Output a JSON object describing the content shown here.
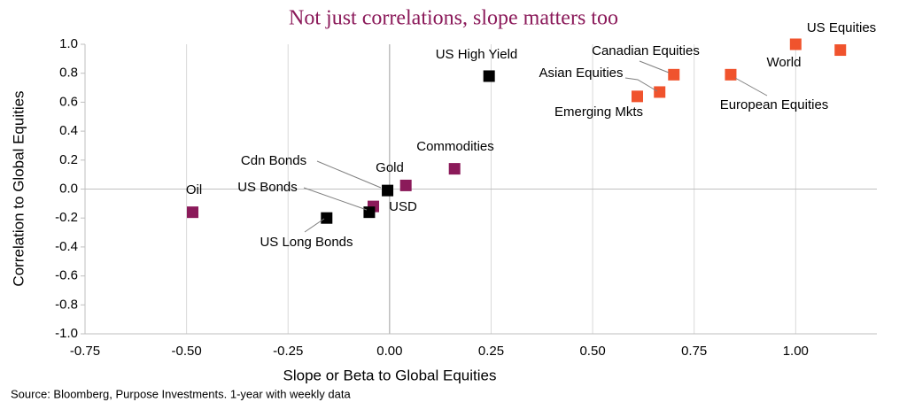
{
  "chart_data": {
    "type": "scatter",
    "title": "Not just correlations, slope matters too",
    "x_label": "Slope or Beta to Global Equities",
    "y_label": "Correlation to Global Equities",
    "source": "Source: Bloomberg, Purpose Investments. 1-year with weekly data",
    "xlim": [
      -0.75,
      1.2
    ],
    "ylim": [
      -1,
      1
    ],
    "xticks": [
      -0.75,
      {
        "value": -0.5,
        "label": "-0.50"
      },
      -0.25,
      {
        "value": 0,
        "label": "0.00"
      },
      0.25,
      {
        "value": 0.5,
        "label": "0.50"
      },
      0.75,
      {
        "value": 1,
        "label": "1.00"
      }
    ],
    "yticks": [
      {
        "value": 1,
        "label": "1.0"
      },
      0.8,
      0.6,
      0.4,
      0.2,
      {
        "value": 0,
        "label": "0.0"
      },
      -0.2,
      -0.4,
      -0.6,
      -0.8,
      {
        "value": -1,
        "label": "-1.0"
      }
    ],
    "grid": true,
    "points": [
      {
        "label": "US Equities",
        "x": 1.11,
        "y": 0.96,
        "color": "#f0532d"
      },
      {
        "label": "World",
        "x": 1.0,
        "y": 1.0,
        "color": "#f0532d"
      },
      {
        "label": "Canadian Equities",
        "x": 0.7,
        "y": 0.79,
        "color": "#f0532d"
      },
      {
        "label": "European Equities",
        "x": 0.84,
        "y": 0.79,
        "color": "#f0532d"
      },
      {
        "label": "Asian Equities",
        "x": 0.665,
        "y": 0.67,
        "color": "#f0532d"
      },
      {
        "label": "Emerging Mkts",
        "x": 0.61,
        "y": 0.64,
        "color": "#f0532d"
      },
      {
        "label": "US High Yield",
        "x": 0.245,
        "y": 0.78,
        "color": "#000000"
      },
      {
        "label": "Commodities",
        "x": 0.16,
        "y": 0.14,
        "color": "#8b1a5a"
      },
      {
        "label": "Gold",
        "x": 0.04,
        "y": 0.025,
        "color": "#8b1a5a"
      },
      {
        "label": "Cdn Bonds",
        "x": -0.005,
        "y": -0.01,
        "color": "#000000"
      },
      {
        "label": "USD",
        "x": -0.04,
        "y": -0.12,
        "color": "#8b1a5a"
      },
      {
        "label": "US Bonds",
        "x": -0.05,
        "y": -0.16,
        "color": "#000000"
      },
      {
        "label": "US Long Bonds",
        "x": -0.155,
        "y": -0.2,
        "color": "#000000"
      },
      {
        "label": "Oil",
        "x": -0.485,
        "y": -0.16,
        "color": "#8b1a5a"
      }
    ]
  }
}
